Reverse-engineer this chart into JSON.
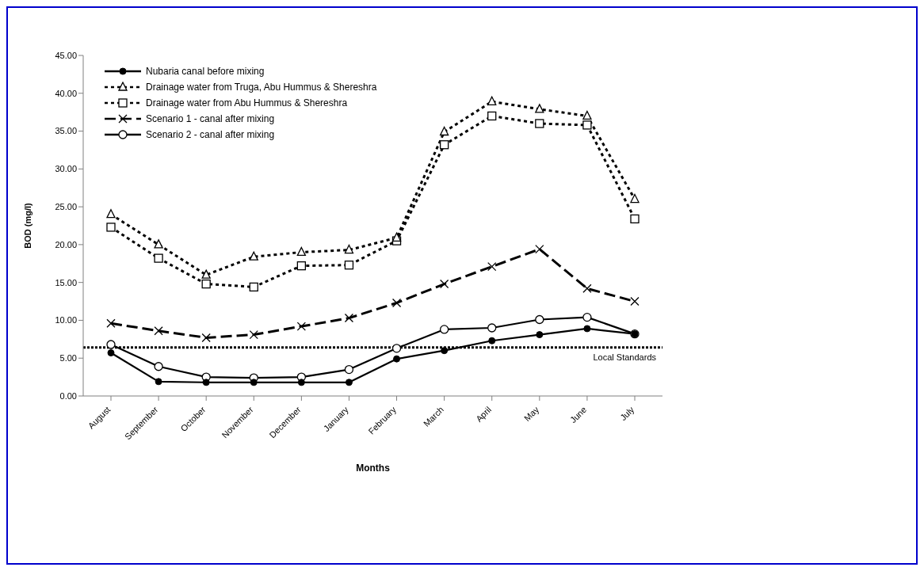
{
  "chart_data": {
    "type": "line",
    "xlabel": "Months",
    "ylabel": "BOD (mg/l)",
    "categories": [
      "August",
      "September",
      "October",
      "November",
      "December",
      "January",
      "February",
      "March",
      "April",
      "May",
      "June",
      "July"
    ],
    "series": [
      {
        "name": "Nubaria canal before mixing",
        "color": "#000000",
        "marker": "circle",
        "line_style": "solid",
        "values": [
          5.7,
          1.9,
          1.8,
          1.8,
          1.8,
          1.8,
          4.9,
          6.0,
          7.3,
          8.1,
          8.9,
          8.2
        ]
      },
      {
        "name": "Drainage water from Truga, Abu Hummus & Shereshra",
        "color": "#000000",
        "marker": "triangle",
        "line_style": "dotted",
        "values": [
          24.0,
          20.0,
          16.0,
          18.4,
          19.0,
          19.3,
          20.9,
          34.9,
          38.9,
          37.9,
          37.0,
          26.0
        ]
      },
      {
        "name": "Drainage water from Abu Hummus & Shereshra",
        "color": "#000000",
        "marker": "square",
        "line_style": "dotted",
        "values": [
          22.3,
          18.2,
          14.8,
          14.4,
          17.2,
          17.3,
          20.5,
          33.2,
          37.0,
          36.0,
          35.8,
          23.4
        ]
      },
      {
        "name": "Scenario 1 - canal after mixing",
        "color": "#000000",
        "marker": "cross",
        "line_style": "dashed",
        "values": [
          9.6,
          8.6,
          7.7,
          8.1,
          9.2,
          10.3,
          12.3,
          14.8,
          17.1,
          19.4,
          14.2,
          12.5
        ]
      },
      {
        "name": "Scenario 2 - canal after mixing",
        "color": "#000000",
        "marker": "open circle",
        "line_style": "solid",
        "values": [
          6.8,
          3.9,
          2.5,
          2.4,
          2.5,
          3.5,
          6.3,
          8.8,
          9.0,
          10.1,
          10.4,
          8.2
        ]
      }
    ],
    "ylim": [
      0,
      45
    ],
    "yticks": [
      {
        "value": 0,
        "label": "0.00"
      },
      {
        "value": 5,
        "label": "5.00"
      },
      {
        "value": 10,
        "label": "10.00"
      },
      {
        "value": 15,
        "label": "15.00"
      },
      {
        "value": 20,
        "label": "20.00"
      },
      {
        "value": 25,
        "label": "25.00"
      },
      {
        "value": 30,
        "label": "30.00"
      },
      {
        "value": 35,
        "label": "35.00"
      },
      {
        "value": 40,
        "label": "40.00"
      },
      {
        "value": 45,
        "label": "45.00"
      }
    ],
    "ref_lines": [
      {
        "axis": "y",
        "value": 6.4,
        "label": "Local Standards",
        "color": "#000000",
        "line_style": "dotted"
      }
    ],
    "legend": "top left"
  }
}
